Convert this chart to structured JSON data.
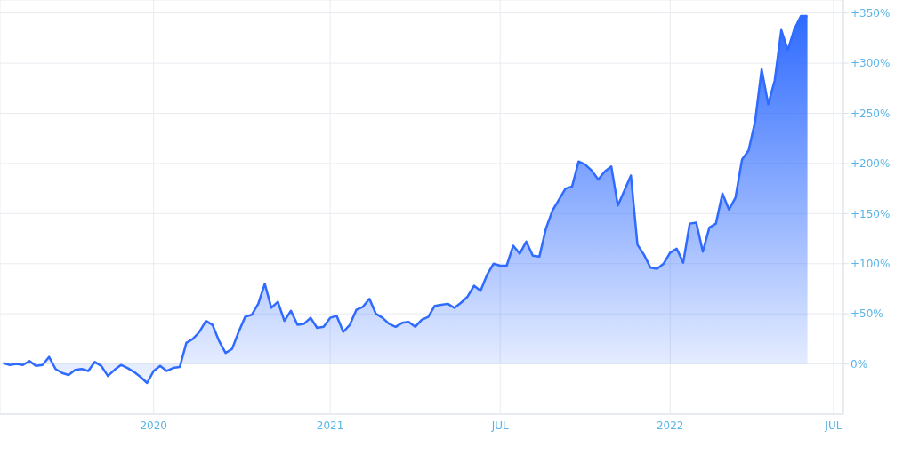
{
  "chart_data": {
    "type": "area",
    "categories": [
      null,
      null,
      null,
      null,
      null,
      null,
      null,
      null,
      null,
      null,
      null,
      null,
      null,
      null,
      null,
      null,
      null,
      null,
      null,
      null,
      null,
      null,
      null,
      "2020",
      null,
      null,
      null,
      null,
      null,
      null,
      null,
      null,
      null,
      null,
      null,
      null,
      null,
      null,
      null,
      null,
      null,
      null,
      null,
      null,
      null,
      null,
      null,
      null,
      null,
      null,
      "2021",
      null,
      null,
      null,
      null,
      null,
      null,
      null,
      null,
      null,
      null,
      null,
      null,
      null,
      null,
      null,
      null,
      null,
      null,
      null,
      null,
      null,
      null,
      null,
      null,
      null,
      "JUL",
      null,
      null,
      null,
      null,
      null,
      null,
      null,
      null,
      null,
      null,
      null,
      null,
      null,
      null,
      null,
      null,
      null,
      null,
      null,
      null,
      null,
      null,
      null,
      null,
      null,
      "2022",
      null,
      null,
      null,
      null,
      null,
      null,
      null,
      null,
      null,
      null,
      null,
      null,
      null,
      null,
      null,
      null,
      null,
      null,
      null,
      null,
      null,
      null,
      null,
      null,
      "JUL",
      null
    ],
    "series": [
      {
        "color": "#2f6bff",
        "values": [
          1,
          -1,
          0,
          -1,
          3,
          -2,
          -1,
          7,
          -5,
          -9,
          -11,
          -6,
          -5,
          -7,
          2,
          -2,
          -12,
          -6,
          -1,
          -4,
          -8,
          -13,
          -19,
          -7,
          -2,
          -7,
          -4,
          -3,
          21,
          25,
          32,
          43,
          39,
          23,
          11,
          15,
          32,
          47,
          49,
          60,
          80,
          56,
          62,
          43,
          53,
          39,
          40,
          46,
          36,
          37,
          46,
          48,
          32,
          39,
          54,
          57,
          65,
          50,
          46,
          40,
          37,
          41,
          42,
          37,
          44,
          47,
          58,
          59,
          60,
          56,
          61,
          67,
          78,
          73,
          89,
          100,
          98,
          98,
          118,
          110,
          122,
          108,
          107,
          135,
          153,
          164,
          175,
          177,
          202,
          199,
          193,
          184,
          192,
          197,
          158,
          173,
          188,
          119,
          109,
          96,
          95,
          100,
          111,
          115,
          101,
          140,
          141,
          112,
          136,
          140,
          170,
          154,
          166,
          204,
          213,
          242,
          294,
          259,
          283,
          333,
          313,
          334,
          347,
          347,
          null,
          null,
          null,
          null,
          null
        ]
      }
    ],
    "ylim": [
      -50,
      363
    ],
    "yticks": [
      {
        "value": 0,
        "label": "0%"
      },
      {
        "value": 50,
        "label": "+50%"
      },
      {
        "value": 100,
        "label": "+100%"
      },
      {
        "value": 150,
        "label": "+150%"
      },
      {
        "value": 200,
        "label": "+200%"
      },
      {
        "value": 250,
        "label": "+250%"
      },
      {
        "value": 300,
        "label": "+300%"
      },
      {
        "value": 350,
        "label": "+350%"
      }
    ],
    "grid": true
  }
}
